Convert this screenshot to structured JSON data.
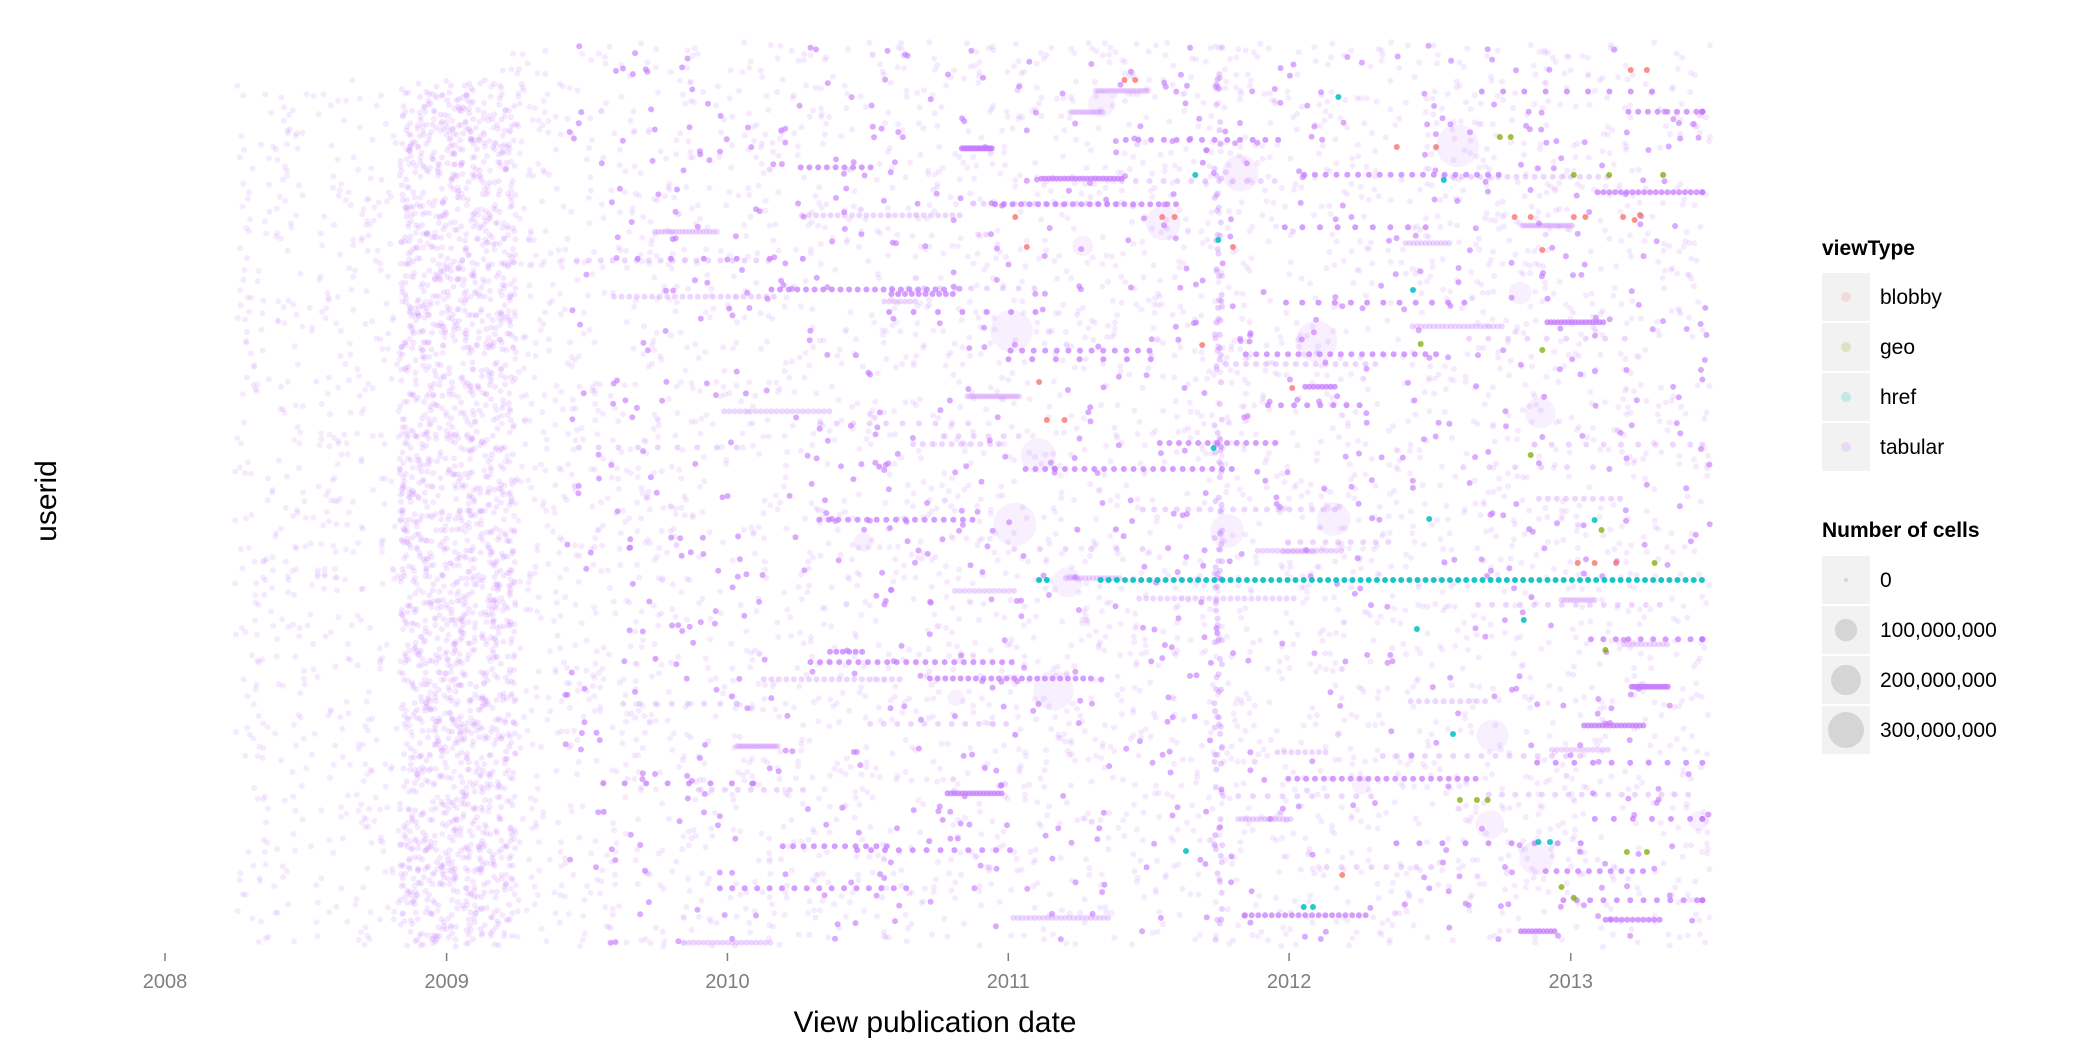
{
  "chart_data": {
    "type": "scatter",
    "title": "",
    "xlabel": "View publication date",
    "ylabel": "userid",
    "x_axis": {
      "type": "date",
      "ticks": [
        "2008",
        "2009",
        "2010",
        "2011",
        "2012",
        "2013"
      ],
      "tick_values": [
        "2008-01-01",
        "2009-01-01",
        "2010-01-01",
        "2011-01-01",
        "2012-01-01",
        "2013-01-01"
      ],
      "range": [
        "2008-01-01",
        "2013-07-01"
      ]
    },
    "y_axis": {
      "type": "categorical",
      "ticks_shown": false
    },
    "grid": false,
    "legend_position": "right",
    "legends": [
      {
        "title": "viewType",
        "aesthetic": "colour",
        "entries": [
          {
            "label": "blobby",
            "color": "#F8766D"
          },
          {
            "label": "geo",
            "color": "#7CAE00"
          },
          {
            "label": "href",
            "color": "#00BFC4"
          },
          {
            "label": "tabular",
            "color": "#C77CFF"
          }
        ]
      },
      {
        "title": "Number of cells",
        "aesthetic": "size",
        "entries": [
          {
            "label": "0",
            "value": 0
          },
          {
            "label": "100,000,000",
            "value": 100000000
          },
          {
            "label": "200,000,000",
            "value": 200000000
          },
          {
            "label": "300,000,000",
            "value": 300000000
          }
        ]
      }
    ],
    "series": [
      {
        "name": "tabular",
        "color": "#C77CFF",
        "date_range": [
          "2008-04-01",
          "2013-07-01"
        ],
        "density": "dense, heaviest around 2009-01 to 2009-03"
      },
      {
        "name": "blobby",
        "color": "#F8766D",
        "date_range": [
          "2011-01-01",
          "2013-07-01"
        ],
        "density": "sparse"
      },
      {
        "name": "geo",
        "color": "#7CAE00",
        "date_range": [
          "2012-06-01",
          "2013-07-01"
        ],
        "density": "sparse"
      },
      {
        "name": "href",
        "color": "#00BFC4",
        "date_range": [
          "2011-02-01",
          "2013-07-01"
        ],
        "density": "sparse, one long horizontal run across 2011-05 to 2013-07"
      }
    ]
  }
}
